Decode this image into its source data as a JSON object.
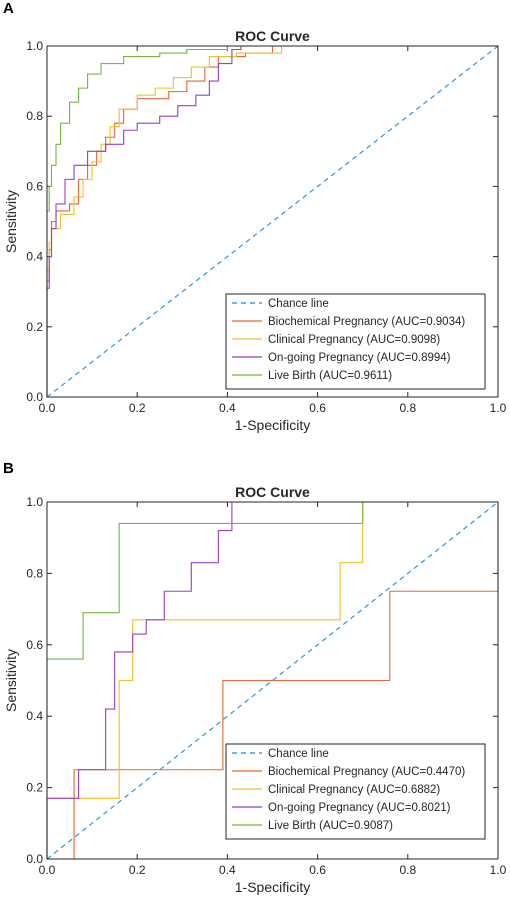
{
  "chart_data": [
    {
      "panel": "A",
      "type": "line",
      "title": "ROC Curve",
      "xlabel": "1-Specificity",
      "ylabel": "Sensitivity",
      "xlim": [
        0,
        1
      ],
      "ylim": [
        0,
        1
      ],
      "xticks": [
        "0.0",
        "0.2",
        "0.4",
        "0.6",
        "0.8",
        "1.0"
      ],
      "yticks": [
        "0.0",
        "0.2",
        "0.4",
        "0.6",
        "0.8",
        "1.0"
      ],
      "grid": false,
      "legend_position": "bottom-right",
      "series": [
        {
          "name": "Chance line",
          "color": "#1f8fd6",
          "dashed": true,
          "points": [
            [
              0,
              0
            ],
            [
              1,
              1
            ]
          ]
        },
        {
          "name": "Biochemical Pregnancy (AUC=0.9034)",
          "color": "#e8643a",
          "dashed": false,
          "points": [
            [
              0,
              0
            ],
            [
              0,
              0.33
            ],
            [
              0.005,
              0.33
            ],
            [
              0.005,
              0.42
            ],
            [
              0.01,
              0.42
            ],
            [
              0.01,
              0.5
            ],
            [
              0.02,
              0.5
            ],
            [
              0.02,
              0.53
            ],
            [
              0.05,
              0.53
            ],
            [
              0.05,
              0.55
            ],
            [
              0.07,
              0.55
            ],
            [
              0.07,
              0.62
            ],
            [
              0.09,
              0.62
            ],
            [
              0.09,
              0.66
            ],
            [
              0.11,
              0.66
            ],
            [
              0.11,
              0.7
            ],
            [
              0.13,
              0.7
            ],
            [
              0.13,
              0.74
            ],
            [
              0.15,
              0.74
            ],
            [
              0.15,
              0.78
            ],
            [
              0.17,
              0.78
            ],
            [
              0.17,
              0.82
            ],
            [
              0.2,
              0.82
            ],
            [
              0.2,
              0.85
            ],
            [
              0.27,
              0.85
            ],
            [
              0.27,
              0.87
            ],
            [
              0.31,
              0.87
            ],
            [
              0.31,
              0.9
            ],
            [
              0.35,
              0.9
            ],
            [
              0.35,
              0.94
            ],
            [
              0.38,
              0.94
            ],
            [
              0.38,
              0.97
            ],
            [
              0.44,
              0.97
            ],
            [
              0.44,
              0.98
            ],
            [
              0.5,
              0.98
            ],
            [
              0.5,
              1.0
            ],
            [
              1.0,
              1.0
            ]
          ]
        },
        {
          "name": "Clinical Pregnancy (AUC=0.9098)",
          "color": "#f0c02c",
          "dashed": false,
          "points": [
            [
              0,
              0
            ],
            [
              0,
              0.36
            ],
            [
              0.005,
              0.36
            ],
            [
              0.005,
              0.44
            ],
            [
              0.01,
              0.44
            ],
            [
              0.01,
              0.48
            ],
            [
              0.03,
              0.48
            ],
            [
              0.03,
              0.52
            ],
            [
              0.06,
              0.52
            ],
            [
              0.06,
              0.57
            ],
            [
              0.08,
              0.57
            ],
            [
              0.08,
              0.62
            ],
            [
              0.1,
              0.62
            ],
            [
              0.1,
              0.67
            ],
            [
              0.12,
              0.67
            ],
            [
              0.12,
              0.72
            ],
            [
              0.14,
              0.72
            ],
            [
              0.14,
              0.77
            ],
            [
              0.16,
              0.77
            ],
            [
              0.16,
              0.82
            ],
            [
              0.2,
              0.82
            ],
            [
              0.2,
              0.86
            ],
            [
              0.24,
              0.86
            ],
            [
              0.24,
              0.88
            ],
            [
              0.28,
              0.88
            ],
            [
              0.28,
              0.91
            ],
            [
              0.32,
              0.91
            ],
            [
              0.32,
              0.94
            ],
            [
              0.36,
              0.94
            ],
            [
              0.36,
              0.97
            ],
            [
              0.42,
              0.97
            ],
            [
              0.42,
              0.98
            ],
            [
              0.52,
              0.98
            ],
            [
              0.52,
              1.0
            ],
            [
              1.0,
              1.0
            ]
          ]
        },
        {
          "name": "On-going Pregnancy (AUC=0.8994)",
          "color": "#9a3fbd",
          "dashed": false,
          "points": [
            [
              0,
              0
            ],
            [
              0,
              0.31
            ],
            [
              0.005,
              0.31
            ],
            [
              0.005,
              0.4
            ],
            [
              0.01,
              0.4
            ],
            [
              0.01,
              0.48
            ],
            [
              0.02,
              0.48
            ],
            [
              0.02,
              0.55
            ],
            [
              0.04,
              0.55
            ],
            [
              0.04,
              0.62
            ],
            [
              0.06,
              0.62
            ],
            [
              0.06,
              0.66
            ],
            [
              0.09,
              0.66
            ],
            [
              0.09,
              0.7
            ],
            [
              0.13,
              0.7
            ],
            [
              0.13,
              0.72
            ],
            [
              0.17,
              0.72
            ],
            [
              0.17,
              0.76
            ],
            [
              0.2,
              0.76
            ],
            [
              0.2,
              0.78
            ],
            [
              0.25,
              0.78
            ],
            [
              0.25,
              0.8
            ],
            [
              0.29,
              0.8
            ],
            [
              0.29,
              0.83
            ],
            [
              0.33,
              0.83
            ],
            [
              0.33,
              0.86
            ],
            [
              0.36,
              0.86
            ],
            [
              0.36,
              0.9
            ],
            [
              0.38,
              0.9
            ],
            [
              0.38,
              0.95
            ],
            [
              0.41,
              0.95
            ],
            [
              0.41,
              0.99
            ],
            [
              0.43,
              0.99
            ],
            [
              0.43,
              1.0
            ],
            [
              1.0,
              1.0
            ]
          ]
        },
        {
          "name": "Live Birth (AUC=0.9611)",
          "color": "#72b843",
          "dashed": false,
          "points": [
            [
              0,
              0
            ],
            [
              0,
              0.53
            ],
            [
              0.005,
              0.53
            ],
            [
              0.005,
              0.6
            ],
            [
              0.01,
              0.6
            ],
            [
              0.01,
              0.66
            ],
            [
              0.02,
              0.66
            ],
            [
              0.02,
              0.72
            ],
            [
              0.03,
              0.72
            ],
            [
              0.03,
              0.78
            ],
            [
              0.05,
              0.78
            ],
            [
              0.05,
              0.84
            ],
            [
              0.07,
              0.84
            ],
            [
              0.07,
              0.88
            ],
            [
              0.09,
              0.88
            ],
            [
              0.09,
              0.92
            ],
            [
              0.12,
              0.92
            ],
            [
              0.12,
              0.95
            ],
            [
              0.17,
              0.95
            ],
            [
              0.17,
              0.97
            ],
            [
              0.25,
              0.97
            ],
            [
              0.25,
              0.98
            ],
            [
              0.31,
              0.98
            ],
            [
              0.31,
              0.99
            ],
            [
              0.4,
              0.99
            ],
            [
              0.4,
              1.0
            ],
            [
              1.0,
              1.0
            ]
          ]
        }
      ]
    },
    {
      "panel": "B",
      "type": "line",
      "title": "ROC Curve",
      "xlabel": "1-Specificity",
      "ylabel": "Sensitivity",
      "xlim": [
        0,
        1
      ],
      "ylim": [
        0,
        1
      ],
      "xticks": [
        "0.0",
        "0.2",
        "0.4",
        "0.6",
        "0.8",
        "1.0"
      ],
      "yticks": [
        "0.0",
        "0.2",
        "0.4",
        "0.6",
        "0.8",
        "1.0"
      ],
      "grid": false,
      "legend_position": "bottom-right",
      "series": [
        {
          "name": "Chance line",
          "color": "#1f8fd6",
          "dashed": true,
          "points": [
            [
              0,
              0
            ],
            [
              1,
              1
            ]
          ]
        },
        {
          "name": "Biochemical Pregnancy (AUC=0.4470)",
          "color": "#e8643a",
          "dashed": false,
          "points": [
            [
              0,
              0
            ],
            [
              0.06,
              0
            ],
            [
              0.06,
              0.25
            ],
            [
              0.39,
              0.25
            ],
            [
              0.39,
              0.5
            ],
            [
              0.76,
              0.5
            ],
            [
              0.76,
              0.75
            ],
            [
              1.0,
              0.75
            ],
            [
              1.0,
              1.0
            ]
          ]
        },
        {
          "name": "Clinical Pregnancy (AUC=0.6882)",
          "color": "#f0c02c",
          "dashed": false,
          "points": [
            [
              0,
              0
            ],
            [
              0,
              0.17
            ],
            [
              0.16,
              0.17
            ],
            [
              0.16,
              0.5
            ],
            [
              0.19,
              0.5
            ],
            [
              0.19,
              0.67
            ],
            [
              0.65,
              0.67
            ],
            [
              0.65,
              0.83
            ],
            [
              0.7,
              0.83
            ],
            [
              0.7,
              1.0
            ],
            [
              1.0,
              1.0
            ]
          ]
        },
        {
          "name": "On-going Pregnancy (AUC=0.8021)",
          "color": "#9a3fbd",
          "dashed": false,
          "points": [
            [
              0,
              0
            ],
            [
              0,
              0.17
            ],
            [
              0.07,
              0.17
            ],
            [
              0.07,
              0.25
            ],
            [
              0.13,
              0.25
            ],
            [
              0.13,
              0.42
            ],
            [
              0.15,
              0.42
            ],
            [
              0.15,
              0.58
            ],
            [
              0.19,
              0.58
            ],
            [
              0.19,
              0.63
            ],
            [
              0.22,
              0.63
            ],
            [
              0.22,
              0.67
            ],
            [
              0.26,
              0.67
            ],
            [
              0.26,
              0.75
            ],
            [
              0.32,
              0.75
            ],
            [
              0.32,
              0.83
            ],
            [
              0.38,
              0.83
            ],
            [
              0.38,
              0.92
            ],
            [
              0.41,
              0.92
            ],
            [
              0.41,
              1.0
            ],
            [
              1.0,
              1.0
            ]
          ]
        },
        {
          "name": "Live Birth (AUC=0.9087)",
          "color": "#72b843",
          "dashed": false,
          "points": [
            [
              0,
              0
            ],
            [
              0,
              0.56
            ],
            [
              0.08,
              0.56
            ],
            [
              0.08,
              0.69
            ],
            [
              0.16,
              0.69
            ],
            [
              0.16,
              0.94
            ],
            [
              0.7,
              0.94
            ],
            [
              0.7,
              1.0
            ],
            [
              1.0,
              1.0
            ]
          ]
        }
      ]
    }
  ]
}
